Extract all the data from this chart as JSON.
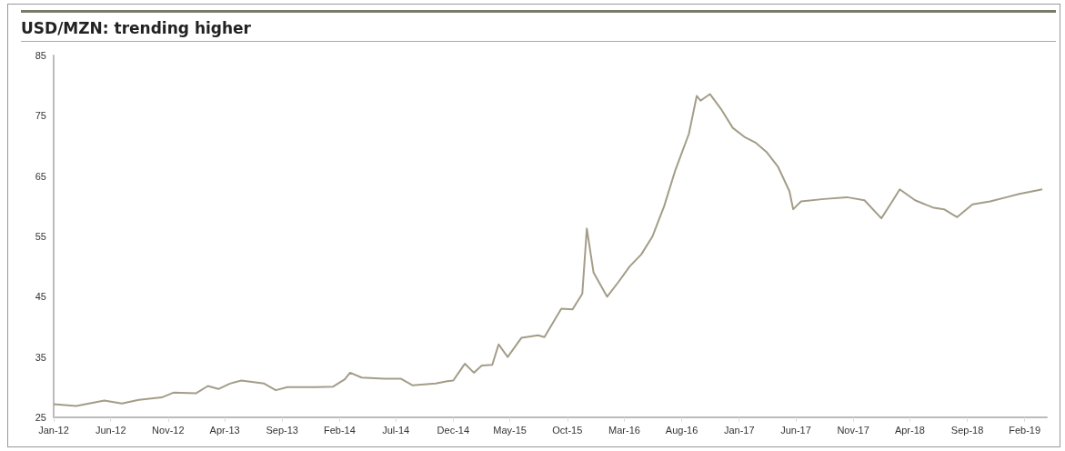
{
  "chart_data": {
    "type": "line",
    "title": "USD/MZN: trending higher",
    "color": "#a39d88",
    "grid": false,
    "marker": "none",
    "line_style": "solid",
    "x": [
      "2012-01-01",
      "2012-03-01",
      "2012-05-15",
      "2012-07-01",
      "2012-08-15",
      "2012-10-15",
      "2012-11-15",
      "2013-01-15",
      "2013-02-15",
      "2013-03-15",
      "2013-04-15",
      "2013-05-15",
      "2013-07-15",
      "2013-08-15",
      "2013-09-15",
      "2013-12-01",
      "2014-01-15",
      "2014-02-15",
      "2014-03-01",
      "2014-04-01",
      "2014-06-01",
      "2014-07-15",
      "2014-08-15",
      "2014-10-15",
      "2014-11-15",
      "2014-12-01",
      "2015-01-01",
      "2015-01-25",
      "2015-02-15",
      "2015-03-15",
      "2015-04-01",
      "2015-04-25",
      "2015-06-01",
      "2015-07-15",
      "2015-08-01",
      "2015-09-15",
      "2015-10-15",
      "2015-11-10",
      "2015-11-22",
      "2015-12-10",
      "2016-01-15",
      "2016-02-15",
      "2016-03-15",
      "2016-04-15",
      "2016-05-15",
      "2016-06-15",
      "2016-07-15",
      "2016-08-20",
      "2016-09-10",
      "2016-09-20",
      "2016-10-15",
      "2016-11-15",
      "2016-12-15",
      "2017-01-15",
      "2017-02-15",
      "2017-03-15",
      "2017-04-15",
      "2017-05-15",
      "2017-05-25",
      "2017-06-15",
      "2017-08-15",
      "2017-10-15",
      "2017-12-01",
      "2018-01-15",
      "2018-02-15",
      "2018-03-05",
      "2018-04-15",
      "2018-06-01",
      "2018-07-01",
      "2018-08-05",
      "2018-09-15",
      "2018-11-01",
      "2018-12-15",
      "2019-01-15",
      "2019-03-20"
    ],
    "values": [
      27.2,
      26.9,
      27.8,
      27.3,
      27.9,
      28.3,
      29.1,
      29.0,
      30.2,
      29.7,
      30.6,
      31.1,
      30.6,
      29.5,
      30.0,
      30.0,
      30.1,
      31.3,
      32.4,
      31.6,
      31.4,
      31.4,
      30.3,
      30.6,
      31.0,
      31.1,
      33.9,
      32.4,
      33.6,
      33.7,
      37.1,
      35.0,
      38.2,
      38.6,
      38.3,
      43.0,
      42.9,
      45.5,
      56.3,
      49.0,
      45.0,
      47.5,
      50.0,
      52.0,
      55.0,
      60.0,
      66.0,
      72.0,
      78.3,
      77.5,
      78.6,
      76.0,
      73.0,
      71.5,
      70.5,
      69.0,
      66.5,
      62.5,
      59.5,
      60.8,
      61.2,
      61.5,
      61.0,
      58.0,
      61.0,
      62.8,
      61.0,
      59.8,
      59.5,
      58.2,
      60.3,
      60.8,
      61.5,
      62.0,
      62.8
    ],
    "xlim": [
      "2012-01-01",
      "2019-04-01"
    ],
    "xticks": [
      {
        "value": "2012-01-01",
        "label": "Jan-12"
      },
      {
        "value": "2012-06-01",
        "label": "Jun-12"
      },
      {
        "value": "2012-11-01",
        "label": "Nov-12"
      },
      {
        "value": "2013-04-01",
        "label": "Apr-13"
      },
      {
        "value": "2013-09-01",
        "label": "Sep-13"
      },
      {
        "value": "2014-02-01",
        "label": "Feb-14"
      },
      {
        "value": "2014-07-01",
        "label": "Jul-14"
      },
      {
        "value": "2014-12-01",
        "label": "Dec-14"
      },
      {
        "value": "2015-05-01",
        "label": "May-15"
      },
      {
        "value": "2015-10-01",
        "label": "Oct-15"
      },
      {
        "value": "2016-03-01",
        "label": "Mar-16"
      },
      {
        "value": "2016-08-01",
        "label": "Aug-16"
      },
      {
        "value": "2017-01-01",
        "label": "Jan-17"
      },
      {
        "value": "2017-06-01",
        "label": "Jun-17"
      },
      {
        "value": "2017-11-01",
        "label": "Nov-17"
      },
      {
        "value": "2018-04-01",
        "label": "Apr-18"
      },
      {
        "value": "2018-09-01",
        "label": "Sep-18"
      },
      {
        "value": "2019-02-01",
        "label": "Feb-19"
      }
    ],
    "ylim": [
      25,
      85
    ],
    "yticks": [
      25,
      35,
      45,
      55,
      65,
      75,
      85
    ]
  }
}
